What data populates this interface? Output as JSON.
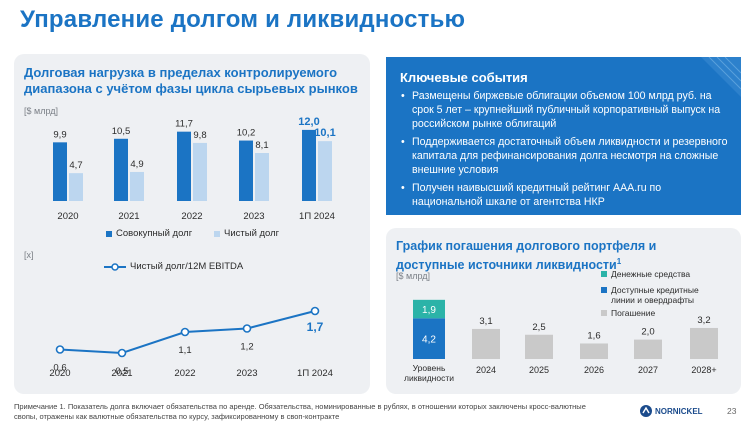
{
  "page": {
    "title": "Управление долгом и ликвидностью",
    "page_number": "23",
    "footnote": "Примечание 1. Показатель долга включает обязательства по аренде. Обязательства, номинированные в рублях, в отношении которых заключены кросс-валютные свопы, отражены как валютные обязательства по курсу, зафиксированному в своп-контракте",
    "logo_text": "NORNICKEL"
  },
  "left_panel": {
    "title": "Долговая нагрузка в пределах контролируемого диапазона с учётом фазы цикла сырьевых рынков",
    "unit_top": "[$ млрд]",
    "unit_bottom": "[x]"
  },
  "key_events": {
    "title": "Ключевые события",
    "items": [
      "Размещены биржевые облигации объемом 100 млрд руб. на срок 5 лет – крупнейший публичный корпоративный выпуск на российском рынке облигаций",
      "Поддерживается достаточный объем ликвидности и резервного капитала для рефинансирования долга несмотря на сложные внешние условия",
      "Получен наивысший кредитный рейтинг AAA.ru по национальной шкале от агентства НКР"
    ]
  },
  "right_panel": {
    "title": "График погашения долгового портфеля и доступные источники ликвидности",
    "title_sup": "1",
    "unit": "[$ млрд]"
  },
  "colors": {
    "accent": "#1b74c4",
    "gross": "#1b74c4",
    "net": "#bcd6ef",
    "cash": "#2bb3a8",
    "repayment": "#c9c9c9",
    "panel_bg": "#eef0f3"
  },
  "chart_data": [
    {
      "type": "bar",
      "categories": [
        "2020",
        "2021",
        "2022",
        "2023",
        "1П 2024"
      ],
      "series": [
        {
          "name": "Совокупный долг",
          "values": [
            9.9,
            10.5,
            11.7,
            10.2,
            12.0
          ],
          "labels": [
            "9,9",
            "10,5",
            "11,7",
            "10,2",
            "12,0"
          ]
        },
        {
          "name": "Чистый долг",
          "values": [
            4.7,
            4.9,
            9.8,
            8.1,
            10.1
          ],
          "labels": [
            "4,7",
            "4,9",
            "9,8",
            "8,1",
            "10,1"
          ]
        }
      ],
      "ylim": [
        0,
        13.5
      ],
      "grid": false,
      "legend": "bottom"
    },
    {
      "type": "line",
      "categories": [
        "2020",
        "2021",
        "2022",
        "2023",
        "1П 2024"
      ],
      "series": [
        {
          "name": "Чистый долг/12M EBITDA",
          "values": [
            0.6,
            0.5,
            1.1,
            1.2,
            1.7
          ],
          "labels": [
            "0,6",
            "0,5",
            "1,1",
            "1,2",
            "1,7"
          ]
        }
      ],
      "ylim": [
        0,
        2
      ],
      "grid": false,
      "legend": "top"
    },
    {
      "type": "bar",
      "stacked": true,
      "categories": [
        "Уровень ликвидности",
        "2024",
        "2025",
        "2026",
        "2027",
        "2028+"
      ],
      "series": [
        {
          "name": "Доступные кредитные линии и овердрафты",
          "values": [
            4.2,
            null,
            null,
            null,
            null,
            null
          ],
          "labels": [
            "4,2",
            "",
            "",
            "",
            "",
            ""
          ]
        },
        {
          "name": "Денежные средства",
          "values": [
            1.9,
            null,
            null,
            null,
            null,
            null
          ],
          "labels": [
            "1,9",
            "",
            "",
            "",
            "",
            ""
          ]
        },
        {
          "name": "Погашение",
          "values": [
            null,
            3.1,
            2.5,
            1.6,
            2.0,
            3.2
          ],
          "labels": [
            "",
            "3,1",
            "2,5",
            "1,6",
            "2,0",
            "3,2"
          ]
        }
      ],
      "legend_order": [
        "Денежные средства",
        "Доступные кредитные линии и овердрафты",
        "Погашение"
      ],
      "ylim": [
        0,
        6.5
      ],
      "grid": false,
      "legend": "right"
    }
  ]
}
